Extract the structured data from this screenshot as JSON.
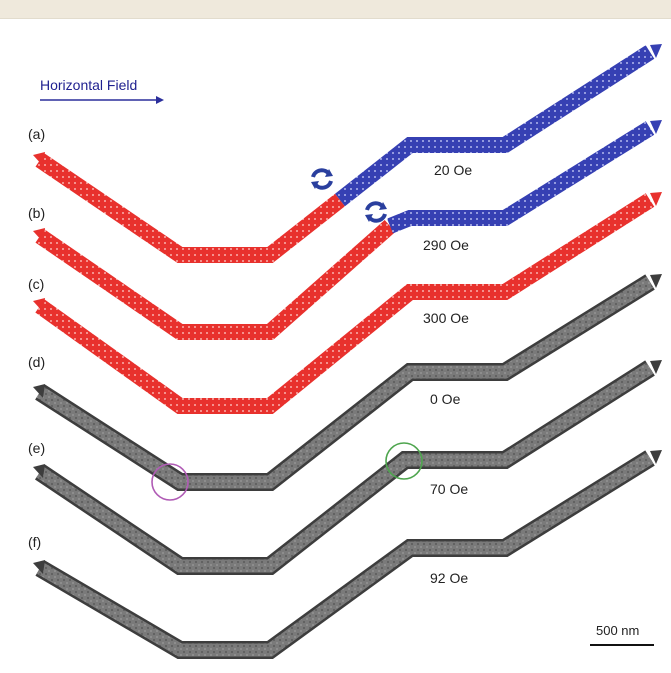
{
  "field": {
    "label": "Horizontal Field",
    "arrow_color": "#2b2f9c"
  },
  "panels": [
    {
      "id": "a",
      "label": "(a)",
      "field": "20 Oe",
      "style": "magnetic-split"
    },
    {
      "id": "b",
      "label": "(b)",
      "field": "290 Oe",
      "style": "magnetic-split"
    },
    {
      "id": "c",
      "label": "(c)",
      "field": "300 Oe",
      "style": "magnetic-red"
    },
    {
      "id": "d",
      "label": "(d)",
      "field": "0 Oe",
      "style": "microscopy"
    },
    {
      "id": "e",
      "label": "(e)",
      "field": "70 Oe",
      "style": "microscopy"
    },
    {
      "id": "f",
      "label": "(f)",
      "field": "92 Oe",
      "style": "microscopy"
    }
  ],
  "markers": {
    "rotation_icon": "rotate-arrows-icon",
    "rotation_color": "#2a3f9e",
    "circle_purple": "#b05bb5",
    "circle_green": "#4ea54e"
  },
  "colors": {
    "red": "#e8312d",
    "blue": "#3640b3",
    "gray_wire": "#6e6e6e"
  },
  "scale": {
    "label": "500 nm"
  }
}
